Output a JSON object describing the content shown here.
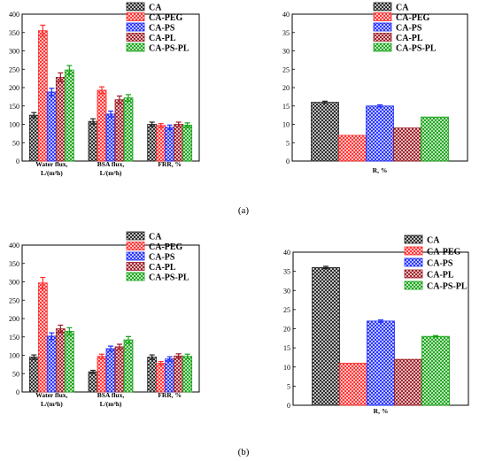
{
  "captions": [
    "(a)",
    "(b)"
  ],
  "colors": {
    "CA": "#222222",
    "CA-PEG": "#ff2b2b",
    "CA-PS": "#1f2cff",
    "CA-PL": "#9c1a22",
    "CA-PS-PL": "#16a316"
  },
  "chart_data": [
    {
      "type": "bar",
      "panel": "(a)",
      "categories": [
        [
          "Water flux,",
          "L/(m²h)"
        ],
        [
          "BSA flux,",
          "L/(m²h)"
        ],
        [
          "FRR, %"
        ]
      ],
      "series": [
        {
          "name": "CA",
          "values": [
            125,
            108,
            100
          ],
          "errors": [
            7,
            7,
            6
          ]
        },
        {
          "name": "CA-PEG",
          "values": [
            355,
            193,
            97
          ],
          "errors": [
            15,
            9,
            5
          ]
        },
        {
          "name": "CA-PS",
          "values": [
            188,
            128,
            92
          ],
          "errors": [
            10,
            8,
            6
          ]
        },
        {
          "name": "CA-PL",
          "values": [
            228,
            167,
            100
          ],
          "errors": [
            12,
            10,
            6
          ]
        },
        {
          "name": "CA-PS-PL",
          "values": [
            248,
            172,
            98
          ],
          "errors": [
            12,
            9,
            6
          ]
        }
      ],
      "yticks": [
        "0",
        "50",
        "100",
        "150",
        "200",
        "250",
        "300",
        "350",
        "400"
      ],
      "ylim": [
        0,
        400
      ],
      "legend": "top-right"
    },
    {
      "type": "bar",
      "panel": "(a)",
      "categories": [
        [
          "R, %"
        ]
      ],
      "series": [
        {
          "name": "CA",
          "values": [
            16
          ],
          "errors": [
            0.3
          ]
        },
        {
          "name": "CA-PEG",
          "values": [
            7
          ],
          "errors": [
            0
          ]
        },
        {
          "name": "CA-PS",
          "values": [
            15
          ],
          "errors": [
            0.3
          ]
        },
        {
          "name": "CA-PL",
          "values": [
            9
          ],
          "errors": [
            0
          ]
        },
        {
          "name": "CA-PS-PL",
          "values": [
            12
          ],
          "errors": [
            0
          ]
        }
      ],
      "yticks": [
        "0",
        "5",
        "10",
        "15",
        "20",
        "25",
        "30",
        "35",
        "40"
      ],
      "ylim": [
        0,
        40
      ],
      "legend": "top-right"
    },
    {
      "type": "bar",
      "panel": "(b)",
      "categories": [
        [
          "Water flux,",
          "L/(m²h)"
        ],
        [
          "BSA flux,",
          "L/(m²h)"
        ],
        [
          "FRR, %"
        ]
      ],
      "series": [
        {
          "name": "CA",
          "values": [
            95,
            55,
            95
          ],
          "errors": [
            6,
            4,
            6
          ]
        },
        {
          "name": "CA-PEG",
          "values": [
            297,
            97,
            78
          ],
          "errors": [
            15,
            6,
            5
          ]
        },
        {
          "name": "CA-PS",
          "values": [
            152,
            118,
            90
          ],
          "errors": [
            9,
            7,
            6
          ]
        },
        {
          "name": "CA-PL",
          "values": [
            172,
            123,
            98
          ],
          "errors": [
            10,
            7,
            6
          ]
        },
        {
          "name": "CA-PS-PL",
          "values": [
            165,
            142,
            97
          ],
          "errors": [
            10,
            9,
            6
          ]
        }
      ],
      "yticks": [
        "0",
        "50",
        "100",
        "150",
        "200",
        "250",
        "300",
        "350",
        "400"
      ],
      "ylim": [
        0,
        400
      ],
      "legend": "top-right"
    },
    {
      "type": "bar",
      "panel": "(b)",
      "categories": [
        [
          "R, %"
        ]
      ],
      "series": [
        {
          "name": "CA",
          "values": [
            36
          ],
          "errors": [
            0.3
          ]
        },
        {
          "name": "CA-PEG",
          "values": [
            11
          ],
          "errors": [
            0
          ]
        },
        {
          "name": "CA-PS",
          "values": [
            22
          ],
          "errors": [
            0.3
          ]
        },
        {
          "name": "CA-PL",
          "values": [
            12
          ],
          "errors": [
            0
          ]
        },
        {
          "name": "CA-PS-PL",
          "values": [
            18
          ],
          "errors": [
            0.2
          ]
        }
      ],
      "yticks": [
        "0",
        "5",
        "10",
        "15",
        "20",
        "25",
        "30",
        "35",
        "40"
      ],
      "ylim": [
        0,
        40
      ],
      "legend": "top-right"
    }
  ]
}
